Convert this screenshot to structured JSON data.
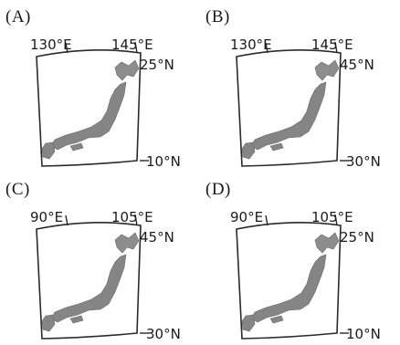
{
  "panels": [
    {
      "option": "(A)",
      "lon_left": "130°E",
      "lon_right": "145°E",
      "lat_top": "25°N",
      "lat_bottom": "10°N"
    },
    {
      "option": "(B)",
      "lon_left": "130°E",
      "lon_right": "145°E",
      "lat_top": "45°N",
      "lat_bottom": "30°N"
    },
    {
      "option": "(C)",
      "lon_left": "90°E",
      "lon_right": "105°E",
      "lat_top": "45°N",
      "lat_bottom": "30°N"
    },
    {
      "option": "(D)",
      "lon_left": "90°E",
      "lon_right": "105°E",
      "lat_top": "25°N",
      "lat_bottom": "10°N"
    }
  ],
  "colors": {
    "land": "#858585",
    "frame": "#2a2a2a"
  },
  "icons": {
    "map": "japan-outline-map"
  }
}
